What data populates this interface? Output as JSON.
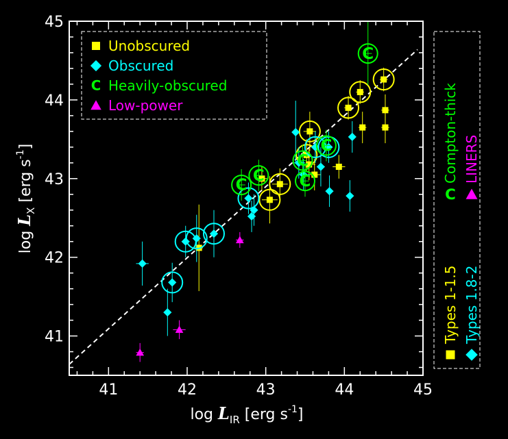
{
  "chart_data": {
    "type": "scatter",
    "xlabel": {
      "prefix": "log ",
      "symbol": "L",
      "subscript": "IR",
      "units_prefix": "[erg  s",
      "units_exponent": "-1",
      "units_suffix": "]"
    },
    "ylabel": {
      "prefix": "log ",
      "symbol": "L",
      "subscript": "X",
      "units_prefix": "[erg  s",
      "units_exponent": "-1",
      "units_suffix": "]"
    },
    "xlim": [
      40.5,
      45
    ],
    "ylim": [
      40.5,
      45
    ],
    "xticks": [
      "41",
      "42",
      "43",
      "44",
      "45"
    ],
    "yticks": [
      "41",
      "42",
      "43",
      "44",
      "45"
    ],
    "reference_line": {
      "style": "dashed",
      "color": "#ffffff",
      "x": [
        40.5,
        44.93
      ],
      "y": [
        40.64,
        44.64
      ]
    },
    "legend_left": {
      "placement": "top-left",
      "entries": [
        {
          "label": "Unobscured",
          "marker": "square",
          "color": "#ffff00"
        },
        {
          "label": "Obscured",
          "marker": "diamond",
          "color": "#00ffff"
        },
        {
          "label": "Heavily-obscured",
          "marker": "C",
          "color": "#00ff00"
        },
        {
          "label": "Low-power",
          "marker": "triangle",
          "color": "#ff00ff"
        }
      ]
    },
    "legend_right": {
      "placement": "right-outside-vertical",
      "entries": [
        {
          "label": "Types 1-1.5",
          "marker": "square",
          "color": "#ffff00"
        },
        {
          "label": "Types 1.8-2",
          "marker": "diamond",
          "color": "#00ffff"
        },
        {
          "label": "Compton-thick",
          "marker": "C",
          "color": "#00ff00"
        },
        {
          "label": "LINERS",
          "marker": "triangle",
          "color": "#ff00ff"
        }
      ]
    },
    "colors": {
      "types_1_1_5": "#ffff00",
      "types_1_8_2": "#00ffff",
      "compton_thick": "#00ff00",
      "liners": "#ff00ff",
      "axes": "#ffffff",
      "background": "#000000"
    },
    "series": [
      {
        "name": "Types 1-1.5",
        "marker": "square",
        "color": "#ffff00",
        "points": [
          {
            "x": 42.15,
            "y": 42.12,
            "xerr": 0.05,
            "yerr": 0.55
          },
          {
            "x": 42.95,
            "y": 43.0,
            "xerr": 0.08,
            "yerr": 0.15
          },
          {
            "x": 43.05,
            "y": 42.73,
            "xerr": 0.1,
            "yerr": 0.3,
            "circled": true
          },
          {
            "x": 43.18,
            "y": 42.93,
            "xerr": 0.1,
            "yerr": 0.2,
            "circled": true
          },
          {
            "x": 43.52,
            "y": 43.3,
            "xerr": 0.05,
            "yerr": 0.2,
            "circled": true
          },
          {
            "x": 43.56,
            "y": 43.6,
            "xerr": 0.08,
            "yerr": 0.25,
            "circled": true
          },
          {
            "x": 43.55,
            "y": 43.18,
            "xerr": 0.08,
            "yerr": 0.2
          },
          {
            "x": 43.62,
            "y": 43.05,
            "xerr": 0.08,
            "yerr": 0.2
          },
          {
            "x": 43.93,
            "y": 43.15,
            "xerr": 0.08,
            "yerr": 0.15
          },
          {
            "x": 44.05,
            "y": 43.9,
            "xerr": 0.05,
            "yerr": 0.15,
            "circled": true
          },
          {
            "x": 44.2,
            "y": 44.1,
            "xerr": 0.05,
            "yerr": 0.15,
            "circled": true
          },
          {
            "x": 44.23,
            "y": 43.65,
            "xerr": 0.05,
            "yerr": 0.2
          },
          {
            "x": 44.5,
            "y": 44.26,
            "xerr": 0.05,
            "yerr": 0.15,
            "circled": true
          },
          {
            "x": 44.52,
            "y": 43.87,
            "xerr": 0.05,
            "yerr": 0.2
          },
          {
            "x": 44.52,
            "y": 43.65,
            "xerr": 0.05,
            "yerr": 0.2
          }
        ]
      },
      {
        "name": "Types 1.8-2",
        "marker": "diamond",
        "color": "#00ffff",
        "points": [
          {
            "x": 41.43,
            "y": 41.92,
            "xerr": 0.08,
            "yerr": 0.28
          },
          {
            "x": 41.75,
            "y": 41.3,
            "xerr": 0.05,
            "yerr": 0.3
          },
          {
            "x": 41.81,
            "y": 41.68,
            "xerr": 0.05,
            "yerr": 0.25,
            "circled": true
          },
          {
            "x": 41.98,
            "y": 42.2,
            "xerr": 0.05,
            "yerr": 0.2,
            "circled": true
          },
          {
            "x": 42.12,
            "y": 42.24,
            "xerr": 0.05,
            "yerr": 0.3,
            "circled": true
          },
          {
            "x": 42.34,
            "y": 42.3,
            "xerr": 0.05,
            "yerr": 0.3,
            "circled": true
          },
          {
            "x": 42.78,
            "y": 42.75,
            "xerr": 0.05,
            "yerr": 0.2,
            "circled": true
          },
          {
            "x": 42.82,
            "y": 42.52,
            "xerr": 0.05,
            "yerr": 0.2
          },
          {
            "x": 42.85,
            "y": 42.6,
            "xerr": 0.05,
            "yerr": 0.2
          },
          {
            "x": 43.38,
            "y": 43.59,
            "xerr": 0.05,
            "yerr": 0.4
          },
          {
            "x": 43.42,
            "y": 43.2,
            "xerr": 0.08,
            "yerr": 0.2
          },
          {
            "x": 43.48,
            "y": 43.05,
            "xerr": 0.08,
            "yerr": 0.2
          },
          {
            "x": 43.63,
            "y": 43.4,
            "xerr": 0.05,
            "yerr": 0.2,
            "circled": true
          },
          {
            "x": 43.7,
            "y": 43.15,
            "xerr": 0.05,
            "yerr": 0.25
          },
          {
            "x": 43.8,
            "y": 43.4,
            "xerr": 0.05,
            "yerr": 0.2,
            "circled": true
          },
          {
            "x": 43.81,
            "y": 42.84,
            "xerr": 0.05,
            "yerr": 0.2
          },
          {
            "x": 44.07,
            "y": 42.78,
            "xerr": 0.05,
            "yerr": 0.2
          },
          {
            "x": 44.1,
            "y": 43.53,
            "xerr": 0.05,
            "yerr": 0.2
          }
        ]
      },
      {
        "name": "Compton-thick",
        "marker": "C",
        "color": "#00ff00",
        "points": [
          {
            "x": 42.69,
            "y": 42.92,
            "xerr": 0.05,
            "yerr": 0.2
          },
          {
            "x": 42.91,
            "y": 43.04,
            "xerr": 0.05,
            "yerr": 0.2
          },
          {
            "x": 43.47,
            "y": 43.23,
            "xerr": 0.05,
            "yerr": 0.2
          },
          {
            "x": 43.5,
            "y": 42.97,
            "xerr": 0.05,
            "yerr": 0.2
          },
          {
            "x": 43.77,
            "y": 43.42,
            "xerr": 0.05,
            "yerr": 0.2
          },
          {
            "x": 44.3,
            "y": 44.59,
            "xerr": 0.05,
            "yerr": 0.4
          }
        ]
      },
      {
        "name": "LINERS",
        "marker": "triangle",
        "color": "#ff00ff",
        "points": [
          {
            "x": 41.4,
            "y": 40.79,
            "xerr": 0.05,
            "yerr": 0.12
          },
          {
            "x": 41.9,
            "y": 41.08,
            "xerr": 0.08,
            "yerr": 0.12
          },
          {
            "x": 42.67,
            "y": 42.22,
            "xerr": 0.05,
            "yerr": 0.1
          }
        ]
      }
    ]
  }
}
